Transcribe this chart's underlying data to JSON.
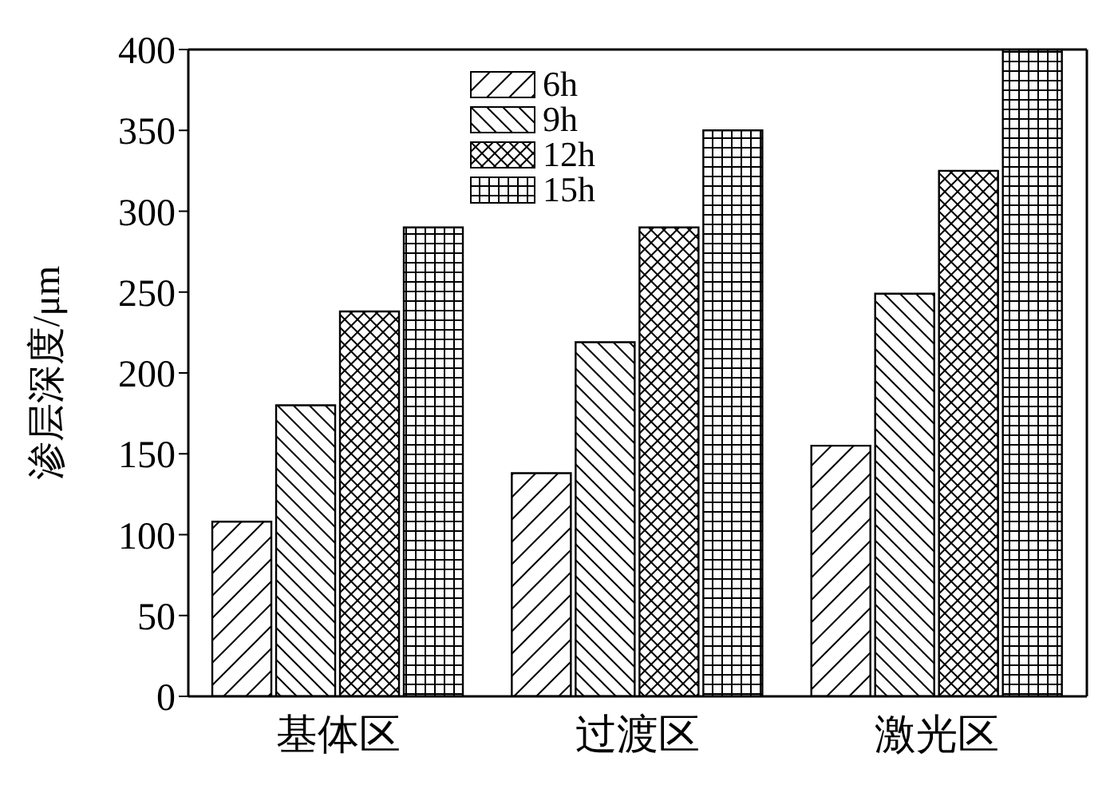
{
  "chart_data": {
    "type": "bar",
    "ylabel": "渗层深度/μm",
    "categories": [
      "基体区",
      "过渡区",
      "激光区"
    ],
    "series": [
      {
        "name": "6h",
        "color": "#000000",
        "values": [
          108,
          138,
          155
        ]
      },
      {
        "name": "9h",
        "color": "#000000",
        "values": [
          180,
          219,
          249
        ]
      },
      {
        "name": "12h",
        "color": "#000000",
        "values": [
          238,
          290,
          325
        ]
      },
      {
        "name": "15h",
        "color": "#000000",
        "values": [
          290,
          350,
          400
        ]
      }
    ],
    "ylim": [
      0,
      400
    ],
    "yticks": [
      0,
      50,
      100,
      150,
      200,
      250,
      300,
      350,
      400
    ],
    "legend": "top"
  }
}
